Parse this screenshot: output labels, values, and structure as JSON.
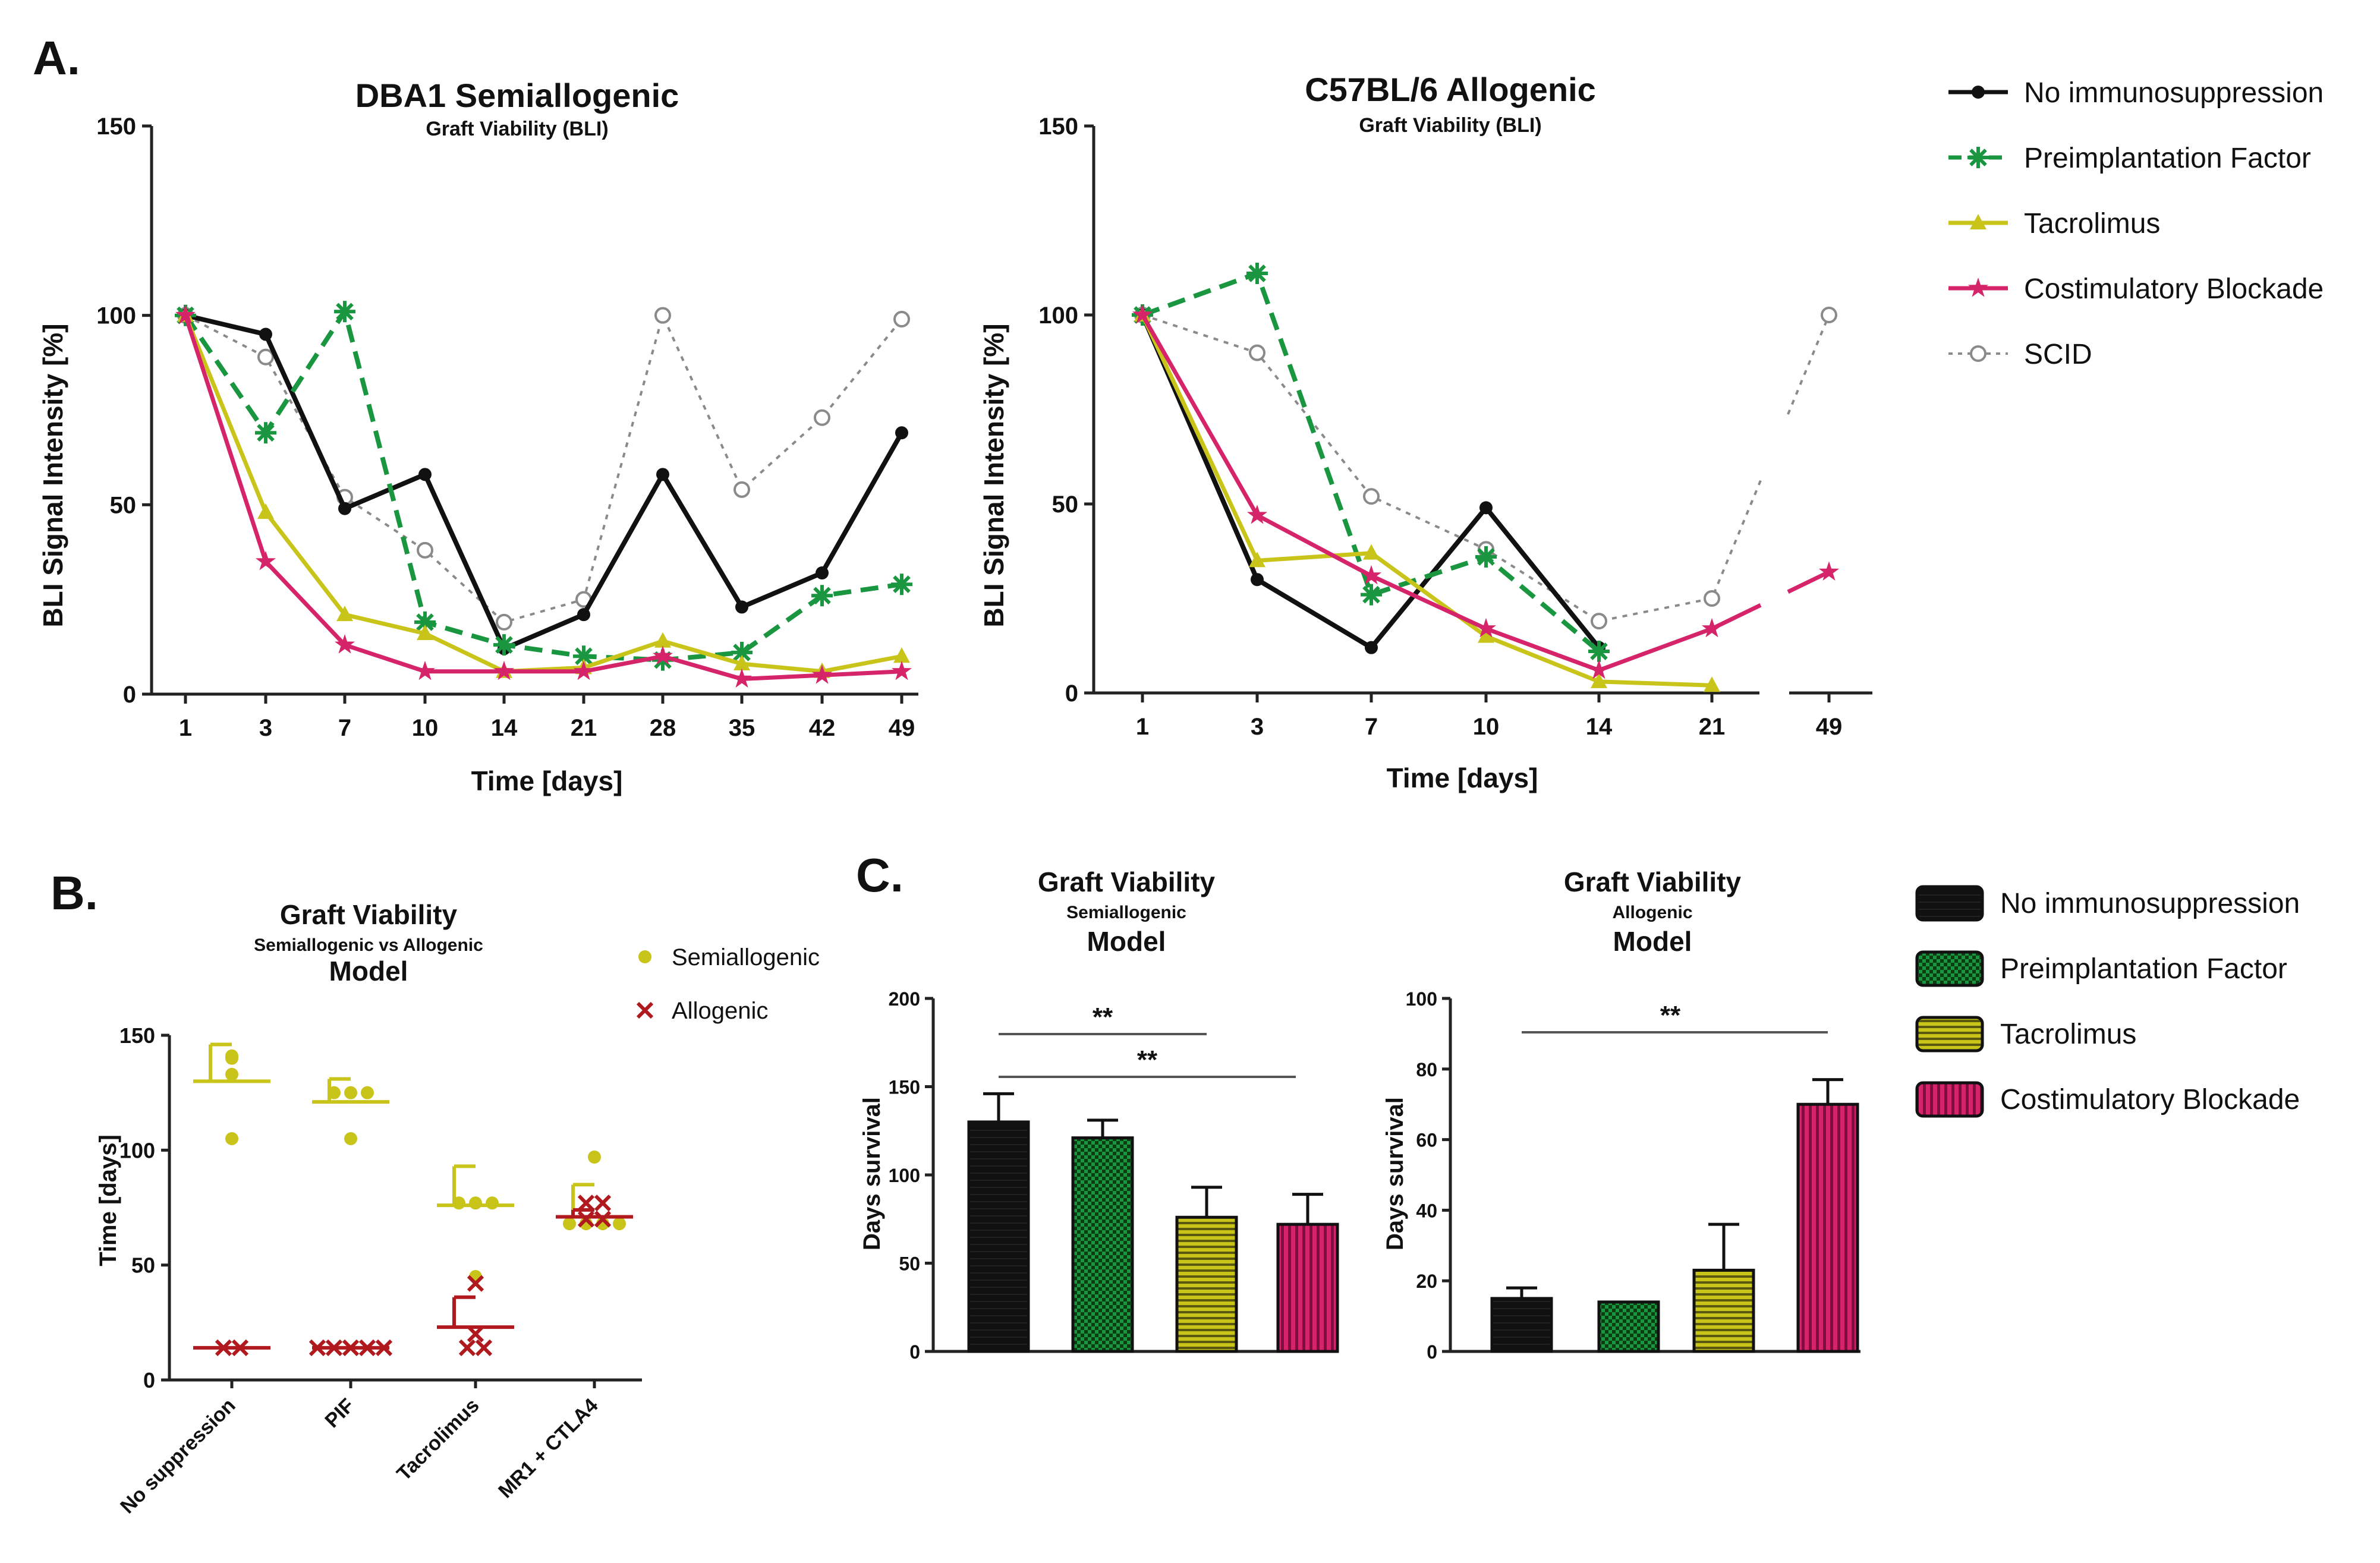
{
  "figure_labels": {
    "panel_a": "A.",
    "panel_b": "B.",
    "panel_c": "C."
  },
  "colors": {
    "no_immuno": "#111111",
    "pif": "#1a9641",
    "tacrolimus": "#c8c41a",
    "costim": "#d6246b",
    "scid": "#8a8a8a",
    "allogenic": "#b0191e",
    "axis": "#222222"
  },
  "legend_a": {
    "items": [
      {
        "label": "No immunosuppression",
        "color": "#111111",
        "marker": "dot",
        "dash": "solid"
      },
      {
        "label": "Preimplantation Factor",
        "color": "#1a9641",
        "marker": "asterisk",
        "dash": "dashed"
      },
      {
        "label": "Tacrolimus",
        "color": "#c8c41a",
        "marker": "triangle",
        "dash": "solid"
      },
      {
        "label": "Costimulatory Blockade",
        "color": "#d6246b",
        "marker": "star",
        "dash": "solid"
      },
      {
        "label": "SCID",
        "color": "#8a8a8a",
        "marker": "circle-open",
        "dash": "dotted"
      }
    ]
  },
  "legend_b": {
    "items": [
      {
        "label": "Semiallogenic",
        "color": "#c8c41a",
        "marker": "dot"
      },
      {
        "label": "Allogenic",
        "color": "#b0191e",
        "marker": "x"
      }
    ]
  },
  "legend_c": {
    "items": [
      {
        "label": "No immunosuppression",
        "color": "#111111",
        "pattern": "solid"
      },
      {
        "label": "Preimplantation Factor",
        "color": "#1a9641",
        "pattern": "checker"
      },
      {
        "label": "Tacrolimus",
        "color": "#c8c41a",
        "pattern": "hstripe"
      },
      {
        "label": "Costimulatory Blockade",
        "color": "#d6246b",
        "pattern": "vstripe"
      }
    ]
  },
  "chart_data": [
    {
      "id": "a1",
      "type": "line",
      "title": "DBA1 Semiallogenic",
      "subtitle": "Graft  Viability  (BLI)",
      "xlabel": "Time [days]",
      "ylabel": "BLI Signal Intensity [%]",
      "categories": [
        "1",
        "3",
        "7",
        "10",
        "14",
        "21",
        "28",
        "35",
        "42",
        "49"
      ],
      "ylim": [
        0,
        150
      ],
      "yticks": [
        0,
        50,
        100,
        150
      ],
      "series": [
        {
          "name": "No immunosuppression",
          "values": [
            100,
            95,
            49,
            58,
            12,
            21,
            58,
            23,
            32,
            69
          ]
        },
        {
          "name": "Preimplantation Factor",
          "values": [
            100,
            69,
            101,
            19,
            13,
            10,
            9,
            11,
            26,
            29
          ]
        },
        {
          "name": "Tacrolimus",
          "values": [
            100,
            48,
            21,
            16,
            6,
            7,
            14,
            8,
            6,
            10
          ]
        },
        {
          "name": "Costimulatory Blockade",
          "values": [
            100,
            35,
            13,
            6,
            6,
            6,
            10,
            4,
            5,
            6
          ]
        },
        {
          "name": "SCID",
          "values": [
            100,
            89,
            52,
            38,
            19,
            25,
            100,
            54,
            73,
            99
          ]
        }
      ]
    },
    {
      "id": "a2",
      "type": "line",
      "title": "C57BL/6 Allogenic",
      "subtitle": "Graft  Viability  (BLI)",
      "xlabel": "Time [days]",
      "ylabel": "BLI Signal Intensity [%]",
      "categories": [
        "1",
        "3",
        "7",
        "10",
        "14",
        "21",
        "49"
      ],
      "ylim": [
        0,
        150
      ],
      "yticks": [
        0,
        50,
        100,
        150
      ],
      "series": [
        {
          "name": "No immunosuppression",
          "values": [
            100,
            30,
            12,
            49,
            12,
            null,
            null
          ]
        },
        {
          "name": "Preimplantation Factor",
          "values": [
            100,
            111,
            26,
            36,
            11,
            null,
            null
          ]
        },
        {
          "name": "Tacrolimus",
          "values": [
            100,
            35,
            37,
            15,
            3,
            2,
            null
          ]
        },
        {
          "name": "Costimulatory Blockade",
          "values": [
            100,
            47,
            31,
            17,
            6,
            17,
            32
          ]
        },
        {
          "name": "SCID",
          "values": [
            100,
            90,
            52,
            38,
            19,
            25,
            100
          ]
        }
      ]
    },
    {
      "id": "b",
      "type": "scatter",
      "title": "Graft Viability",
      "subtitle": "Semiallogenic vs Allogenic",
      "model": "Model",
      "ylabel": "Time [days]",
      "categories": [
        "No suppression",
        "PIF",
        "Tacrolimus",
        "MR1 + CTLA4"
      ],
      "ylim": [
        0,
        150
      ],
      "yticks": [
        0,
        50,
        100,
        150
      ],
      "series": [
        {
          "name": "Semiallogenic",
          "points": [
            [
              0,
              140
            ],
            [
              0,
              141
            ],
            [
              0,
              133
            ],
            [
              0,
              105
            ],
            [
              1,
              125
            ],
            [
              1,
              125
            ],
            [
              1,
              125
            ],
            [
              1,
              105
            ],
            [
              2,
              77
            ],
            [
              2,
              77
            ],
            [
              2,
              77
            ],
            [
              2,
              45
            ],
            [
              3,
              97
            ],
            [
              3,
              68
            ],
            [
              3,
              68
            ],
            [
              3,
              68
            ],
            [
              3,
              68
            ]
          ],
          "means": [
            130,
            121,
            76,
            71
          ],
          "sems": [
            16,
            10,
            17,
            14
          ]
        },
        {
          "name": "Allogenic",
          "points": [
            [
              0,
              14
            ],
            [
              0,
              14
            ],
            [
              1,
              14
            ],
            [
              1,
              14
            ],
            [
              1,
              14
            ],
            [
              1,
              14
            ],
            [
              1,
              14
            ],
            [
              2,
              42
            ],
            [
              2,
              20
            ],
            [
              2,
              14
            ],
            [
              2,
              14
            ],
            [
              3,
              77
            ],
            [
              3,
              77
            ],
            [
              3,
              70
            ],
            [
              3,
              70
            ]
          ],
          "means": [
            14,
            14,
            23,
            71
          ],
          "sems": [
            0,
            0,
            13,
            3
          ]
        }
      ]
    },
    {
      "id": "c1",
      "type": "bar",
      "title": "Graft Viability",
      "subtitle": "Semiallogenic",
      "model": "Model",
      "ylabel": "Days survival",
      "categories": [
        "No immunosuppression",
        "Preimplantation Factor",
        "Tacrolimus",
        "Costimulatory Blockade"
      ],
      "values": [
        130,
        121,
        76,
        72
      ],
      "errors": [
        16,
        10,
        17,
        17
      ],
      "ylim": [
        0,
        200
      ],
      "yticks": [
        0,
        50,
        100,
        150,
        200
      ],
      "significance": [
        {
          "from": 0,
          "to": 2,
          "label": "**"
        },
        {
          "from": 0,
          "to": 3,
          "label": "**"
        }
      ]
    },
    {
      "id": "c2",
      "type": "bar",
      "title": "Graft Viability",
      "subtitle": "Allogenic",
      "model": "Model",
      "ylabel": "Days survival",
      "categories": [
        "No immunosuppression",
        "Preimplantation Factor",
        "Tacrolimus",
        "Costimulatory Blockade"
      ],
      "values": [
        15,
        14,
        23,
        70
      ],
      "errors": [
        3,
        0,
        13,
        7
      ],
      "ylim": [
        0,
        100
      ],
      "yticks": [
        0,
        20,
        40,
        60,
        80,
        100
      ],
      "significance": [
        {
          "from": 0,
          "to": 3,
          "label": "**"
        }
      ]
    }
  ]
}
